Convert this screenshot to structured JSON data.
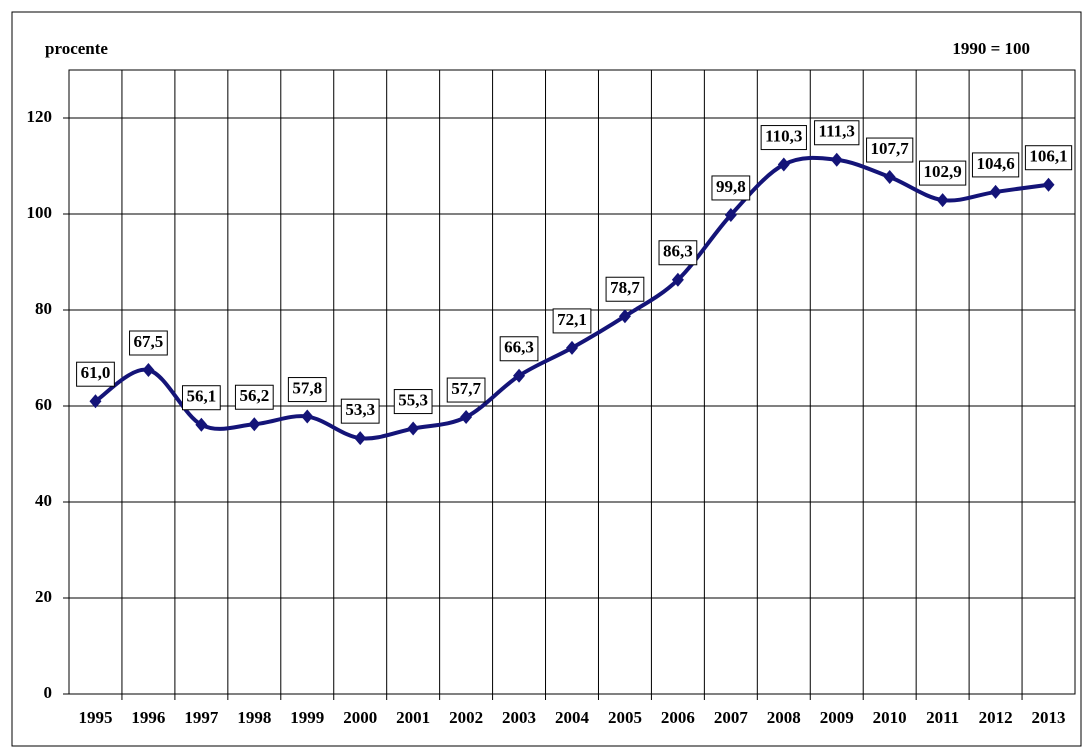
{
  "chart_data": {
    "type": "line",
    "y_axis_label": "procente",
    "annotation": "1990 = 100",
    "categories": [
      "1995",
      "1996",
      "1997",
      "1998",
      "1999",
      "2000",
      "2001",
      "2002",
      "2003",
      "2004",
      "2005",
      "2006",
      "2007",
      "2008",
      "2009",
      "2010",
      "2011",
      "2012",
      "2013"
    ],
    "series": [
      {
        "color": "#141478",
        "values": [
          61.0,
          67.5,
          56.1,
          56.2,
          57.8,
          53.3,
          55.3,
          57.7,
          66.3,
          72.1,
          78.7,
          86.3,
          99.8,
          110.3,
          111.3,
          107.7,
          102.9,
          104.6,
          106.1
        ],
        "value_labels": [
          "61,0",
          "67,5",
          "56,1",
          "56,2",
          "57,8",
          "53,3",
          "55,3",
          "57,7",
          "66,3",
          "72,1",
          "78,7",
          "86,3",
          "99,8",
          "110,3",
          "111,3",
          "107,7",
          "102,9",
          "104,6",
          "106,1"
        ]
      }
    ],
    "ylim": [
      0,
      130
    ],
    "yticks": [
      0,
      20,
      40,
      60,
      80,
      100,
      120
    ],
    "grid": true
  }
}
